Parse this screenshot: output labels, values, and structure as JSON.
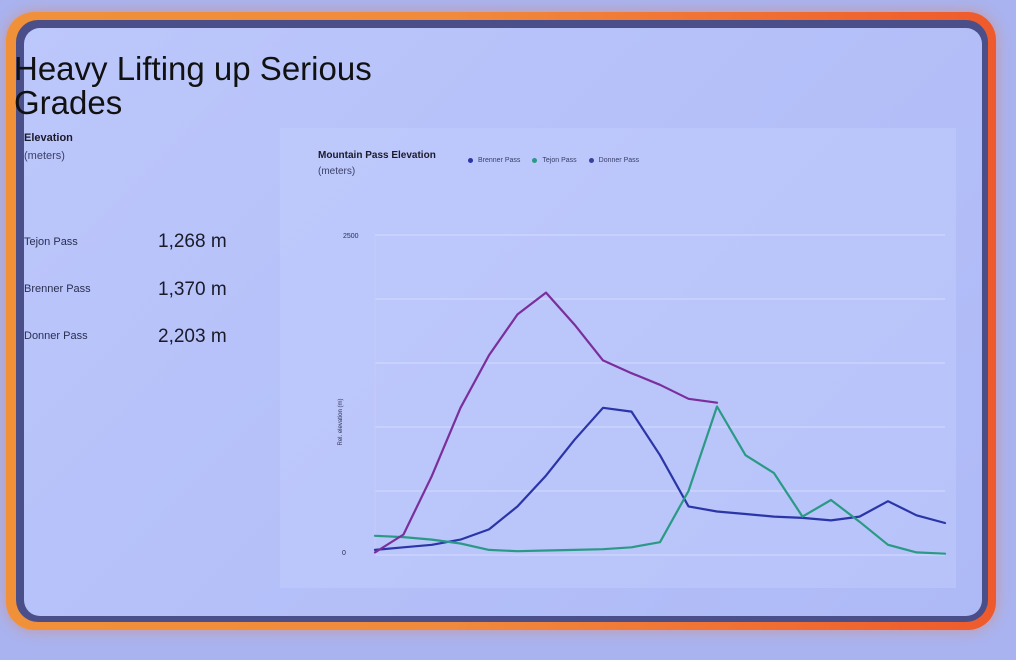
{
  "slide": {
    "title": "Heavy Lifting up Serious Grades",
    "left_heading": "Elevation",
    "left_sub": "(meters)",
    "stats": [
      {
        "name": "Tejon Pass",
        "value": "1,268 m"
      },
      {
        "name": "Brenner Pass",
        "value": "1,370 m"
      },
      {
        "name": "Donner Pass",
        "value": "2,203 m"
      }
    ]
  },
  "chart_data": {
    "type": "line",
    "title": "Mountain Pass Elevation",
    "subtitle": "(meters)",
    "ylabel": "Rel. elevation (m)",
    "xlabel": "",
    "ylim": [
      0,
      2500
    ],
    "yticks": [
      "2500",
      "0"
    ],
    "grid": true,
    "legend_position": "top",
    "x": [
      0,
      5,
      10,
      15,
      20,
      25,
      30,
      35,
      40,
      45,
      50,
      55,
      60,
      65,
      70,
      75,
      80,
      85,
      90,
      95,
      100
    ],
    "series": [
      {
        "name": "Brenner Pass",
        "color": "#2a35a8",
        "values": [
          40,
          60,
          80,
          120,
          200,
          380,
          620,
          900,
          1150,
          1120,
          780,
          380,
          340,
          320,
          300,
          290,
          270,
          300,
          420,
          310,
          250
        ]
      },
      {
        "name": "Tejon Pass",
        "color": "#2a9a86",
        "values": [
          150,
          140,
          120,
          90,
          40,
          30,
          35,
          40,
          45,
          60,
          100,
          500,
          1160,
          780,
          640,
          300,
          430,
          260,
          80,
          20,
          10
        ]
      },
      {
        "name": "Donner Pass",
        "color": "#7a2f9c",
        "values": [
          20,
          160,
          620,
          1150,
          1560,
          1880,
          2050,
          1800,
          1520,
          1420,
          1330,
          1220,
          1190,
          null,
          null,
          null,
          null,
          null,
          null,
          null,
          null
        ]
      }
    ]
  }
}
